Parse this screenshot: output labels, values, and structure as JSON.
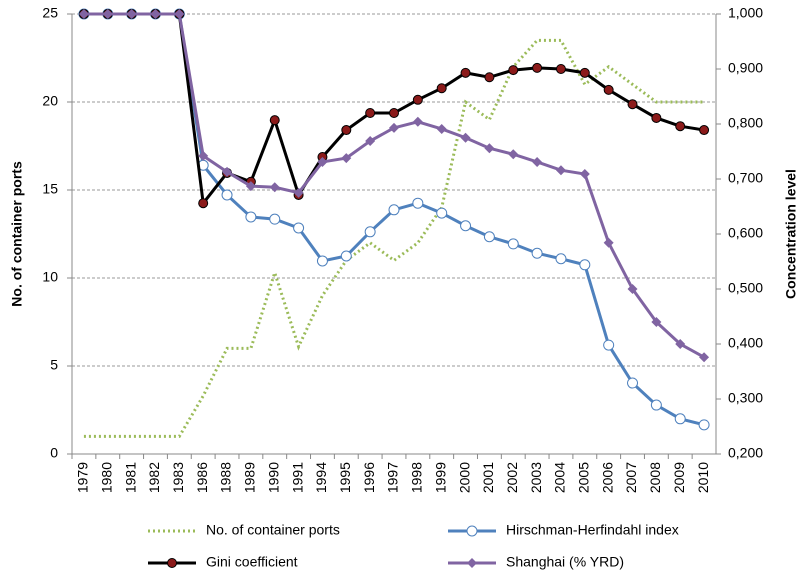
{
  "chart_data": {
    "type": "line",
    "categories": [
      "1979",
      "1980",
      "1981",
      "1982",
      "1983",
      "1986",
      "1988",
      "1989",
      "1990",
      "1991",
      "1994",
      "1995",
      "1996",
      "1997",
      "1998",
      "1999",
      "2000",
      "2001",
      "2002",
      "2003",
      "2004",
      "2005",
      "2006",
      "2007",
      "2008",
      "2009",
      "2010"
    ],
    "ylabel": "No. of container ports",
    "y2label": "Concentration level",
    "ylim": [
      0,
      25
    ],
    "yticks": [
      0,
      5,
      10,
      15,
      20,
      25
    ],
    "y2lim": [
      0.2,
      1.0
    ],
    "y2ticks": [
      {
        "value": 0.2,
        "label": "0,200"
      },
      {
        "value": 0.3,
        "label": "0,300"
      },
      {
        "value": 0.4,
        "label": "0,400"
      },
      {
        "value": 0.5,
        "label": "0,500"
      },
      {
        "value": 0.6,
        "label": "0,600"
      },
      {
        "value": 0.7,
        "label": "0,700"
      },
      {
        "value": 0.8,
        "label": "0,800"
      },
      {
        "value": 0.9,
        "label": "0,900"
      },
      {
        "value": 1.0,
        "label": "1,000"
      }
    ],
    "grid": true,
    "legend": "bottom",
    "series": [
      {
        "name": "No. of container ports",
        "color": "#9bbb59",
        "dash": "dotted",
        "marker": "none",
        "values": [
          1,
          1,
          1,
          1,
          1,
          3.3,
          6,
          6,
          10.3,
          6.1,
          9,
          11,
          12,
          11,
          12,
          14,
          20,
          19,
          22,
          23.5,
          23.5,
          21,
          22,
          21,
          20,
          20,
          20
        ]
      },
      {
        "name": "Hirschman-Herfindahl index",
        "color": "#4f81bd",
        "axis": "y2",
        "marker": "circle-open",
        "values": [
          1.0,
          1.0,
          1.0,
          1.0,
          1.0,
          0.725,
          0.671,
          0.631,
          0.627,
          0.611,
          0.551,
          0.56,
          0.604,
          0.644,
          0.656,
          0.638,
          0.615,
          0.595,
          0.582,
          0.565,
          0.555,
          0.544,
          0.398,
          0.329,
          0.289,
          0.264,
          0.253
        ]
      },
      {
        "name": "Gini coefficient",
        "color": "#000000",
        "axis": "y2",
        "marker": "circle",
        "values": [
          1.0,
          1.0,
          1.0,
          1.0,
          1.0,
          0.656,
          0.711,
          0.695,
          0.807,
          0.671,
          0.74,
          0.789,
          0.82,
          0.82,
          0.844,
          0.865,
          0.893,
          0.885,
          0.898,
          0.902,
          0.9,
          0.893,
          0.862,
          0.836,
          0.811,
          0.796,
          0.789
        ]
      },
      {
        "name": "Shanghai (% YRD)",
        "color": "#8064a2",
        "axis": "y2",
        "marker": "diamond",
        "values": [
          1.0,
          1.0,
          1.0,
          1.0,
          1.0,
          0.742,
          0.713,
          0.687,
          0.685,
          0.675,
          0.731,
          0.738,
          0.769,
          0.793,
          0.804,
          0.791,
          0.775,
          0.756,
          0.745,
          0.731,
          0.716,
          0.709,
          0.584,
          0.5,
          0.44,
          0.4,
          0.376
        ]
      }
    ]
  }
}
